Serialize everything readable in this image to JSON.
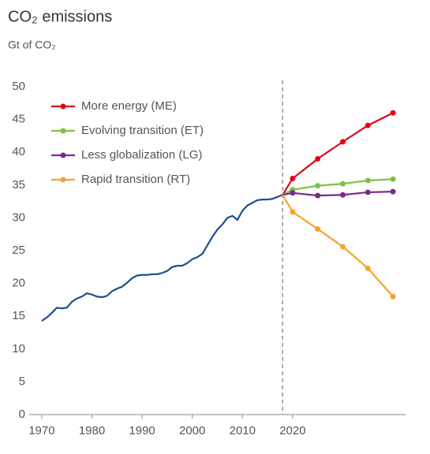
{
  "chart_data": {
    "type": "line",
    "title": "CO₂ emissions",
    "subtitle": "Gt of CO₂",
    "xlim": [
      1967.5,
      2042.5
    ],
    "xticks": [
      1970,
      1980,
      1990,
      2000,
      2010,
      2020
    ],
    "ylim": [
      0,
      50
    ],
    "yticks": [
      0,
      5,
      10,
      15,
      20,
      25,
      30,
      35,
      40,
      45,
      50
    ],
    "vline": 2018,
    "legend": "upper-left",
    "grid": false,
    "series": [
      {
        "color": "#1f4e8c",
        "x": [
          1970,
          1971,
          1972,
          1973,
          1974,
          1975,
          1976,
          1977,
          1978,
          1979,
          1980,
          1981,
          1982,
          1983,
          1984,
          1985,
          1986,
          1987,
          1988,
          1989,
          1990,
          1991,
          1992,
          1993,
          1994,
          1995,
          1996,
          1997,
          1998,
          1999,
          2000,
          2001,
          2002,
          2003,
          2004,
          2005,
          2006,
          2007,
          2008,
          2009,
          2010,
          2011,
          2012,
          2013,
          2014,
          2015,
          2016,
          2017,
          2018
        ],
        "values": [
          14.3,
          14.8,
          15.5,
          16.3,
          16.2,
          16.3,
          17.2,
          17.7,
          18.0,
          18.5,
          18.3,
          18.0,
          17.9,
          18.1,
          18.8,
          19.2,
          19.5,
          20.1,
          20.8,
          21.2,
          21.3,
          21.3,
          21.4,
          21.4,
          21.6,
          21.9,
          22.5,
          22.7,
          22.7,
          23.1,
          23.7,
          24.0,
          24.5,
          25.8,
          27.1,
          28.2,
          29.0,
          30.0,
          30.3,
          29.7,
          31.1,
          31.9,
          32.3,
          32.7,
          32.8,
          32.8,
          32.9,
          33.2,
          33.5
        ]
      },
      {
        "name": "More energy (ME)",
        "color": "#e3001b",
        "x": [
          2018,
          2020,
          2025,
          2030,
          2035,
          2040
        ],
        "values": [
          33.5,
          36.0,
          39.0,
          41.6,
          44.1,
          46.0
        ]
      },
      {
        "name": "Evolving transition (ET)",
        "color": "#7cc242",
        "x": [
          2018,
          2020,
          2025,
          2030,
          2035,
          2040
        ],
        "values": [
          33.5,
          34.3,
          34.9,
          35.2,
          35.7,
          35.9
        ]
      },
      {
        "name": "Less globalization (LG)",
        "color": "#7b2a8c",
        "x": [
          2018,
          2020,
          2025,
          2030,
          2035,
          2040
        ],
        "values": [
          33.5,
          33.8,
          33.4,
          33.5,
          33.9,
          34.0
        ]
      },
      {
        "name": "Rapid transition (RT)",
        "color": "#f6a22d",
        "x": [
          2018,
          2020,
          2025,
          2030,
          2035,
          2040
        ],
        "values": [
          33.5,
          30.9,
          28.3,
          25.6,
          22.3,
          18.0
        ]
      }
    ]
  }
}
